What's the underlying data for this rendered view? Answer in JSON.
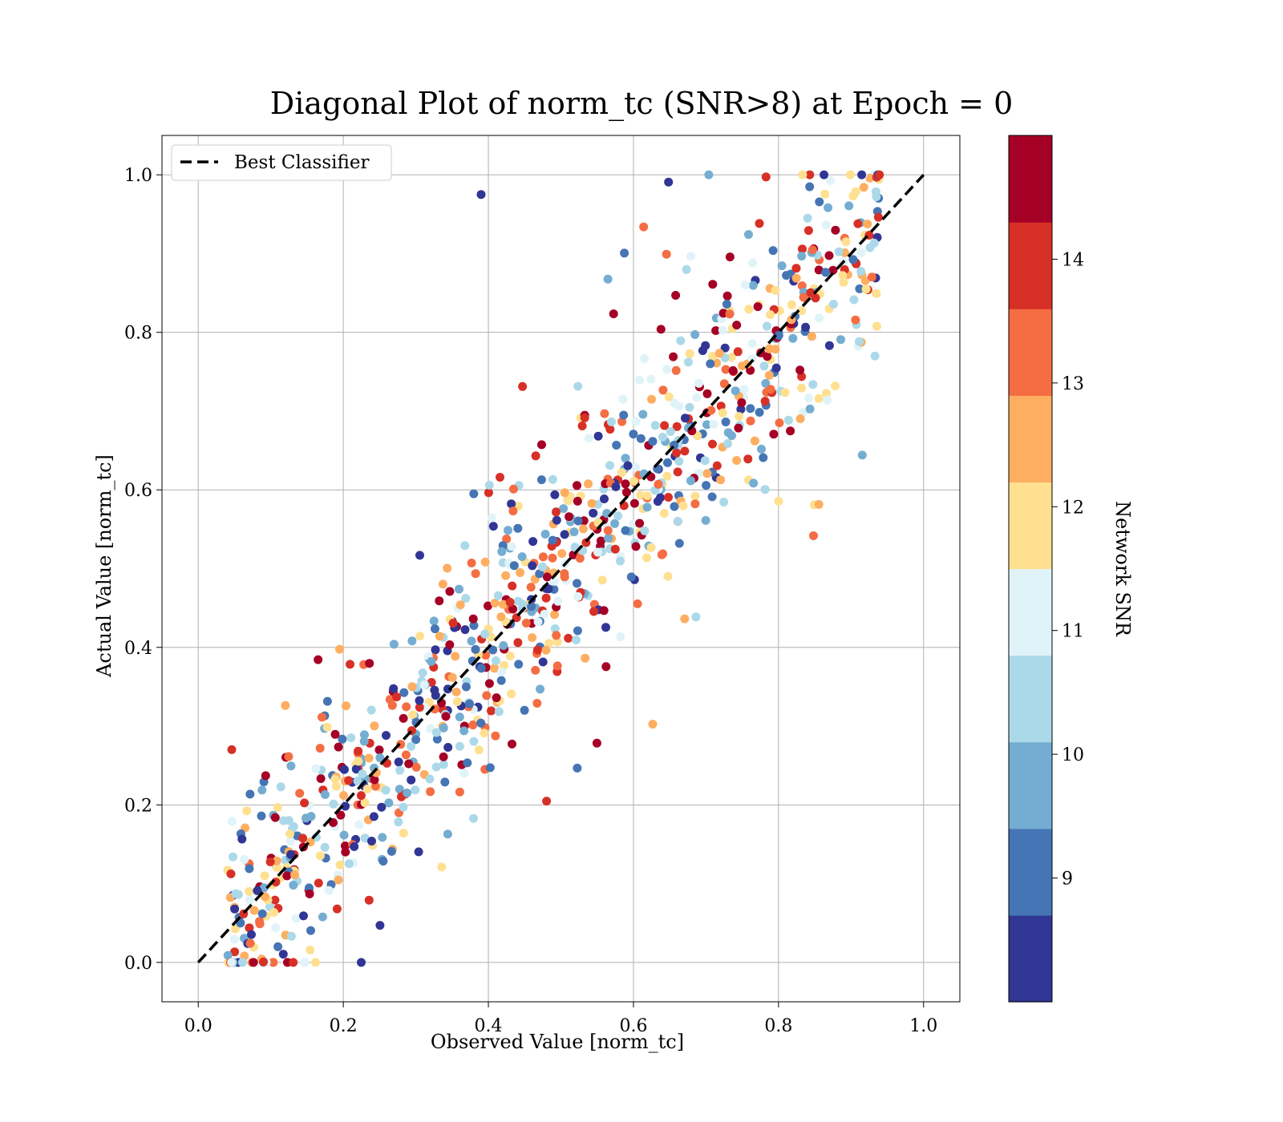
{
  "chart_data": {
    "type": "scatter",
    "title": "Diagonal Plot of norm_tc (SNR>8) at Epoch = 0",
    "xlabel": "Observed Value [norm_tc]",
    "ylabel": "Actual Value [norm_tc]",
    "xlim": [
      -0.05,
      1.05
    ],
    "ylim": [
      -0.05,
      1.05
    ],
    "xticks": [
      "0.0",
      "0.2",
      "0.4",
      "0.6",
      "0.8",
      "1.0"
    ],
    "yticks": [
      "0.0",
      "0.2",
      "0.4",
      "0.6",
      "0.8",
      "1.0"
    ],
    "grid": true,
    "legend": {
      "position": "top-left",
      "entries": [
        "Best Classifier"
      ]
    },
    "reference_line": {
      "name": "Best Classifier",
      "x": [
        0,
        1
      ],
      "y": [
        0,
        1
      ],
      "style": "dashed",
      "color": "#000000"
    },
    "colorbar": {
      "label": "Network SNR",
      "ticks": [
        "9",
        "10",
        "11",
        "12",
        "13",
        "14"
      ],
      "tick_values": [
        9,
        10,
        11,
        12,
        13,
        14
      ],
      "range": [
        8,
        15
      ],
      "colormap": [
        "#313695",
        "#4575b4",
        "#74add1",
        "#abd9e9",
        "#e0f3f8",
        "#fee090",
        "#fdae61",
        "#f46d43",
        "#d73027",
        "#a50026"
      ]
    },
    "point_count": 1000,
    "points": [
      [
        0.39,
        0.975,
        8.5
      ],
      [
        0.45,
        0.45,
        13.0
      ],
      [
        0.3,
        0.29,
        9.5
      ],
      [
        0.87,
        0.83,
        12.0
      ],
      [
        0.12,
        0.13,
        10.5
      ],
      [
        0.55,
        0.55,
        14.5
      ],
      [
        0.68,
        0.68,
        11.0
      ],
      [
        0.22,
        0.2,
        13.5
      ],
      [
        0.8,
        0.8,
        8.8
      ],
      [
        0.05,
        0.07,
        12.5
      ]
    ]
  }
}
